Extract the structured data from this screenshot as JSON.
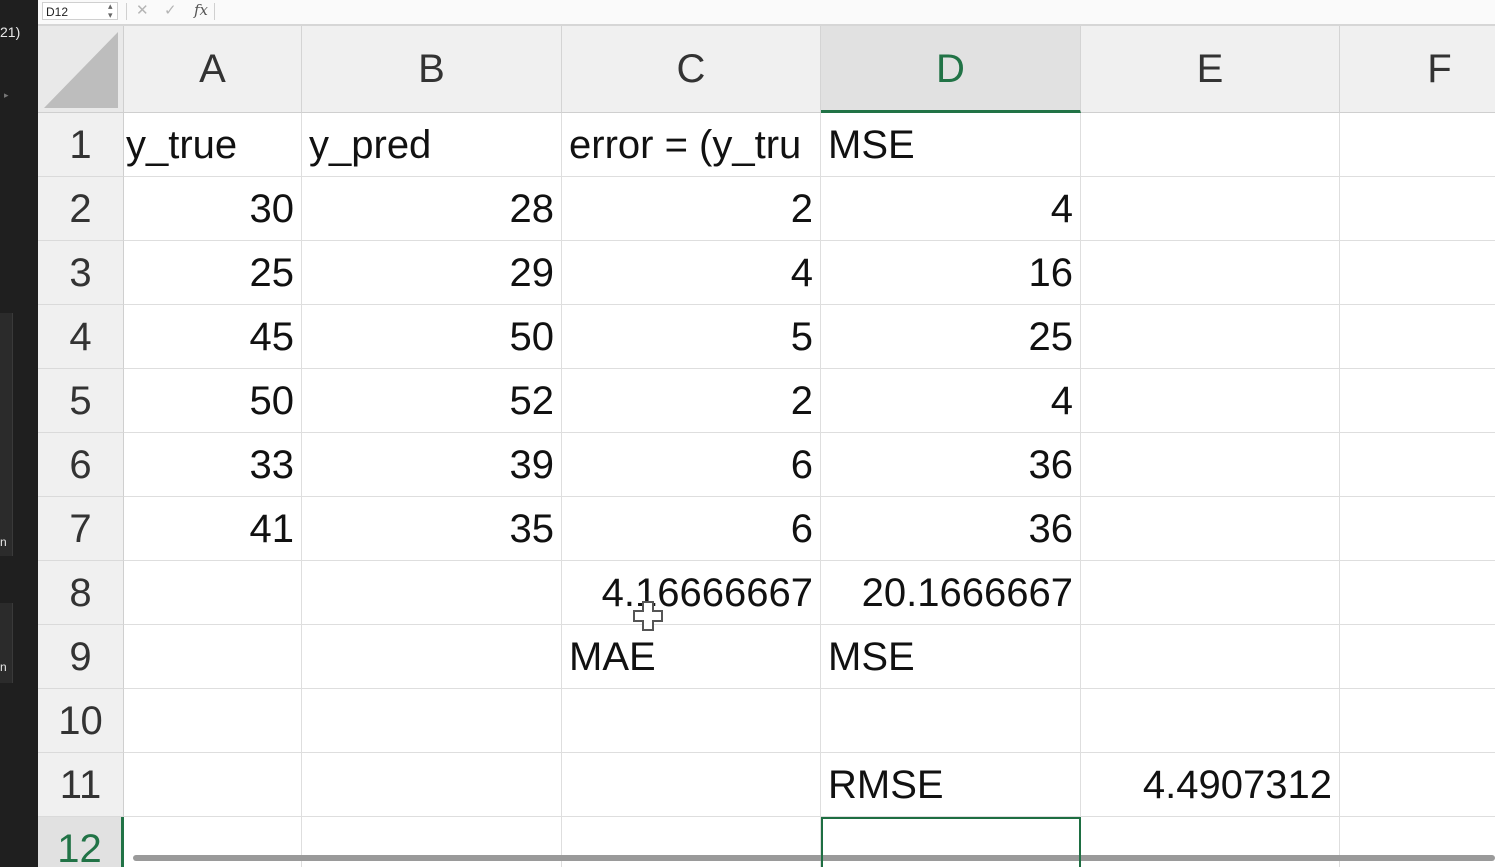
{
  "left_strip": {
    "visible_text": "21)",
    "clipped_chars": [
      "n",
      "n"
    ]
  },
  "formula_bar": {
    "name_box": "D12",
    "formula": "",
    "cancel_icon": "x-icon",
    "enter_icon": "check-icon",
    "fx_label": "fx"
  },
  "columns": [
    "A",
    "B",
    "C",
    "D",
    "E",
    "F"
  ],
  "selected_column": "D",
  "rows": [
    "1",
    "2",
    "3",
    "4",
    "5",
    "6",
    "7",
    "8",
    "9",
    "10",
    "11",
    "12"
  ],
  "selected_row": "12",
  "cells": {
    "A1": "y_true",
    "B1": "y_pred",
    "C1": "error = (y_tru",
    "D1": "MSE",
    "A2": "30",
    "B2": "28",
    "C2": "2",
    "D2": "4",
    "A3": "25",
    "B3": "29",
    "C3": "4",
    "D3": "16",
    "A4": "45",
    "B4": "50",
    "C4": "5",
    "D4": "25",
    "A5": "50",
    "B5": "52",
    "C5": "2",
    "D5": "4",
    "A6": "33",
    "B6": "39",
    "C6": "6",
    "D6": "36",
    "A7": "41",
    "B7": "35",
    "C7": "6",
    "D7": "36",
    "C8": "4.16666667",
    "D8": "20.1666667",
    "C9": "MAE",
    "D9": "MSE",
    "D11": "RMSE",
    "E11": "4.4907312"
  },
  "active_cell": "D12",
  "colors": {
    "accent": "#217346",
    "grid": "#dedede",
    "header_bg": "#f0f0f0"
  }
}
